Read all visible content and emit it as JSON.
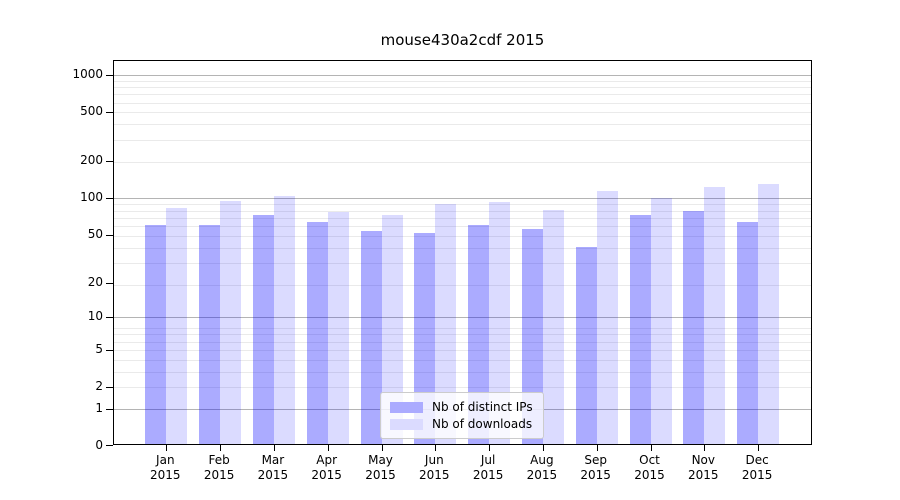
{
  "title": "mouse430a2cdf 2015",
  "legend": {
    "items": [
      {
        "label": "Nb of distinct IPs",
        "swatch_color": "#ababff"
      },
      {
        "label": "Nb of downloads",
        "swatch_color": "#dbdbff"
      }
    ]
  },
  "chart_data": {
    "type": "bar",
    "title": "mouse430a2cdf 2015",
    "categories": [
      "Jan 2015",
      "Feb 2015",
      "Mar 2015",
      "Apr 2015",
      "May 2015",
      "Jun 2015",
      "Jul 2015",
      "Aug 2015",
      "Sep 2015",
      "Oct 2015",
      "Nov 2015",
      "Dec 2015"
    ],
    "x_months": [
      "Jan",
      "Feb",
      "Mar",
      "Apr",
      "May",
      "Jun",
      "Jul",
      "Aug",
      "Sep",
      "Oct",
      "Nov",
      "Dec"
    ],
    "x_year": "2015",
    "series": [
      {
        "name": "Nb of distinct IPs",
        "color": "rgba(0,0,255,0.33)",
        "swatch_color": "#ababff",
        "values": [
          58,
          58,
          70,
          61,
          52,
          50,
          58,
          54,
          38,
          70,
          76,
          62
        ]
      },
      {
        "name": "Nb of downloads",
        "color": "rgba(0,0,255,0.14)",
        "swatch_color": "#dbdbff",
        "values": [
          80,
          91,
          101,
          74,
          70,
          87,
          89,
          77,
          110,
          96,
          119,
          126
        ]
      }
    ],
    "xlabel": "",
    "ylabel": "",
    "y_scale": "log10(value+1)",
    "y_ticks": [
      0,
      1,
      2,
      5,
      10,
      20,
      50,
      100,
      200,
      500,
      1000
    ],
    "ylim": [
      0,
      1300
    ],
    "grid": {
      "major_values": [
        1,
        10,
        100,
        1000
      ],
      "minor_values": [
        2,
        3,
        4,
        5,
        6,
        7,
        8,
        19,
        29,
        39,
        49,
        59,
        69,
        79,
        89,
        199,
        299,
        399,
        499,
        599,
        699,
        799,
        899
      ],
      "major_color": "#b4b4b4",
      "minor_color": "#eaeaea",
      "grid_on": true
    },
    "legend_position": "lower center"
  }
}
